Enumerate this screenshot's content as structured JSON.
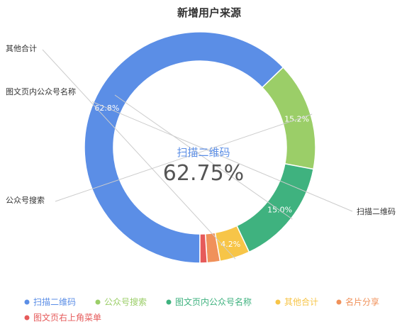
{
  "chart_data": {
    "type": "pie",
    "title": "新增用户来源",
    "center": {
      "label": "扫描二维码",
      "value": "62.75%"
    },
    "series": [
      {
        "name": "扫描二维码",
        "value": 62.8,
        "label": "62.8%",
        "color": "#5b8ee6"
      },
      {
        "name": "公众号搜索",
        "value": 15.2,
        "label": "15.2%",
        "color": "#9bce68"
      },
      {
        "name": "图文页内公众号名称",
        "value": 15.0,
        "label": "15.0%",
        "color": "#3fb27f"
      },
      {
        "name": "其他合计",
        "value": 4.2,
        "label": "4.2%",
        "color": "#f7c548"
      },
      {
        "name": "名片分享",
        "value": 1.8,
        "label": "",
        "color": "#f0915a"
      },
      {
        "name": "图文页右上角菜单",
        "value": 1.0,
        "label": "",
        "color": "#e65a5a"
      }
    ],
    "legend": "bottom"
  }
}
